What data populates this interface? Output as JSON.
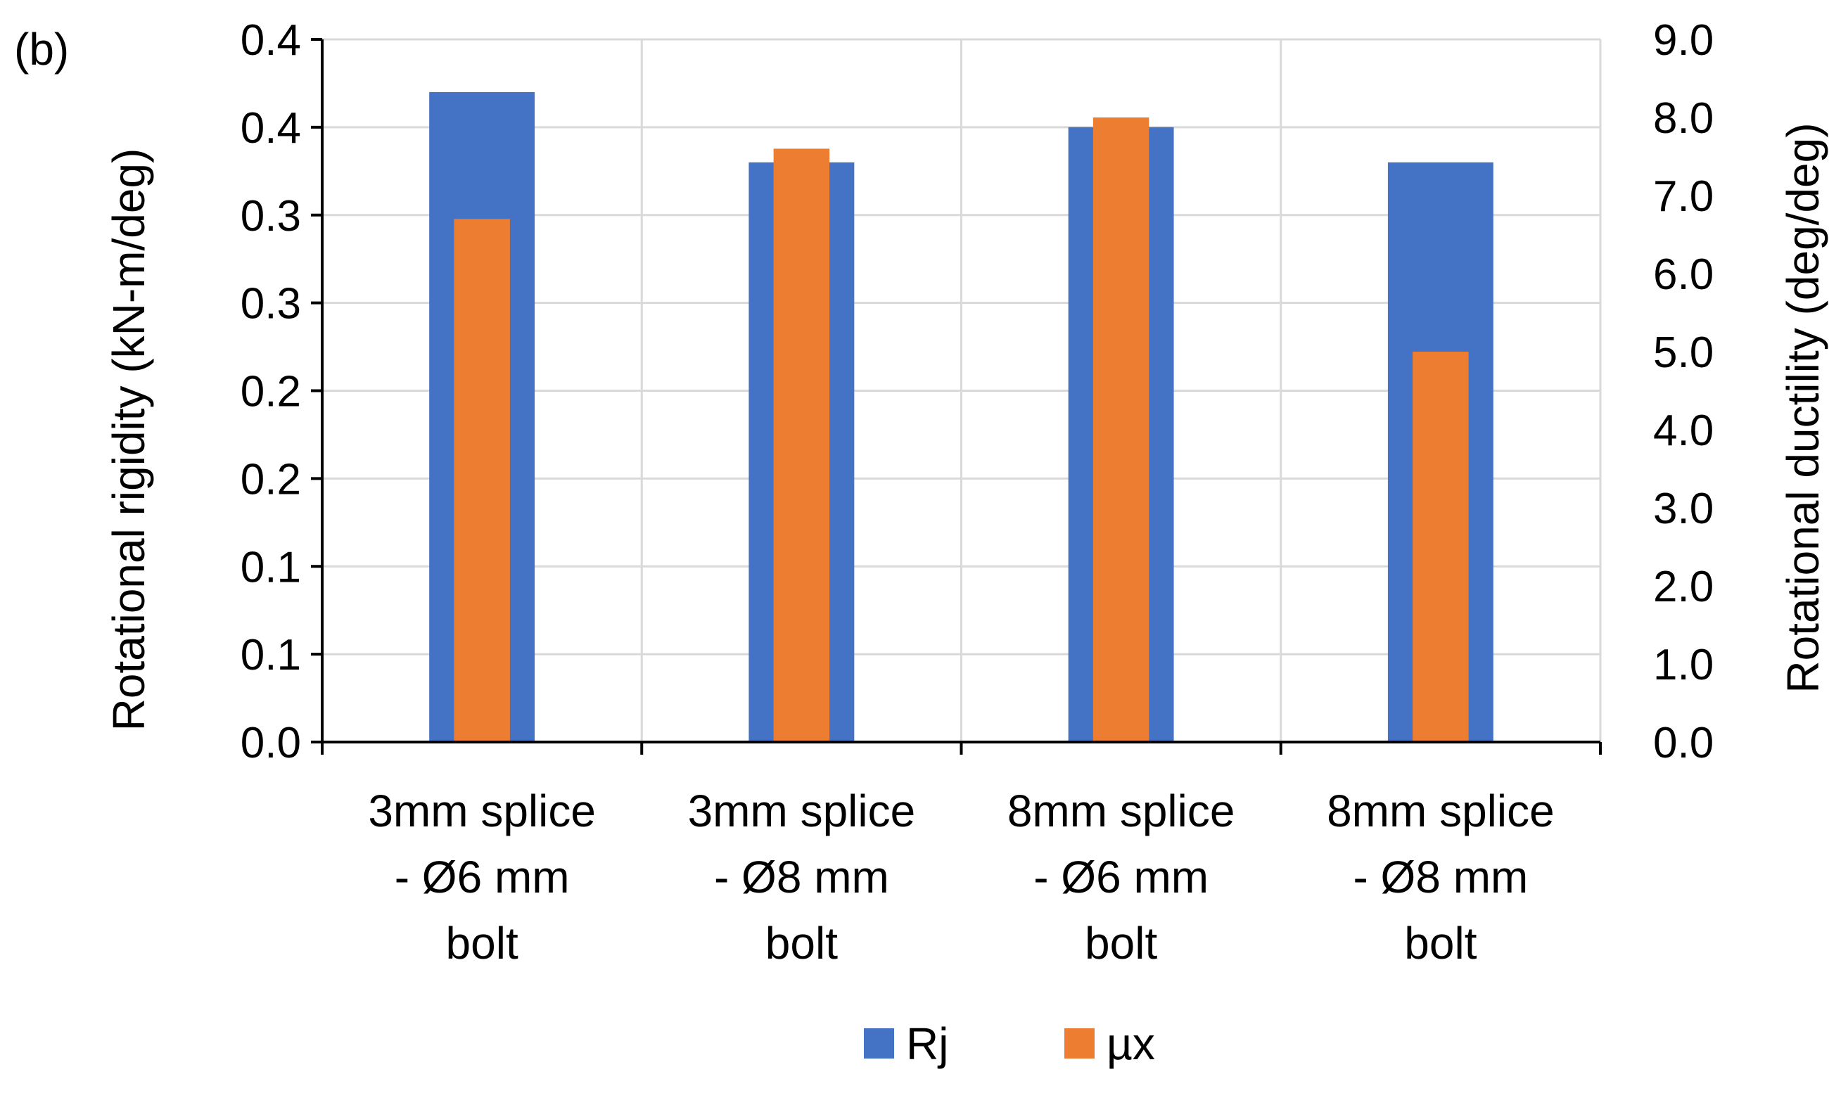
{
  "panel_label": "(b)",
  "chart_data": {
    "type": "bar",
    "categories": [
      [
        "3mm splice",
        "- Ø6 mm",
        "bolt"
      ],
      [
        "3mm splice",
        "- Ø8 mm",
        "bolt"
      ],
      [
        "8mm splice",
        "- Ø6 mm",
        "bolt"
      ],
      [
        "8mm splice",
        "- Ø8 mm",
        "bolt"
      ]
    ],
    "series": [
      {
        "name": "Rj",
        "axis": "left",
        "color": "#4472C4",
        "values": [
          0.37,
          0.33,
          0.35,
          0.33
        ]
      },
      {
        "name": "µx",
        "axis": "right",
        "color": "#ED7D31",
        "values": [
          6.7,
          7.6,
          8.0,
          5.0
        ]
      }
    ],
    "ylabel": "Rotational rigidity (kN-m/deg)",
    "y2label": "Rotational ductility (deg/deg)",
    "yticks": [
      "0.0",
      "0.1",
      "0.1",
      "0.2",
      "0.2",
      "0.3",
      "0.3",
      "0.4",
      "0.4"
    ],
    "y2ticks": [
      "0.0",
      "1.0",
      "2.0",
      "3.0",
      "4.0",
      "5.0",
      "6.0",
      "7.0",
      "8.0",
      "9.0"
    ],
    "ylim": [
      0,
      0.4
    ],
    "y2lim": [
      0,
      9
    ],
    "grid": true,
    "legend_position": "bottom"
  }
}
